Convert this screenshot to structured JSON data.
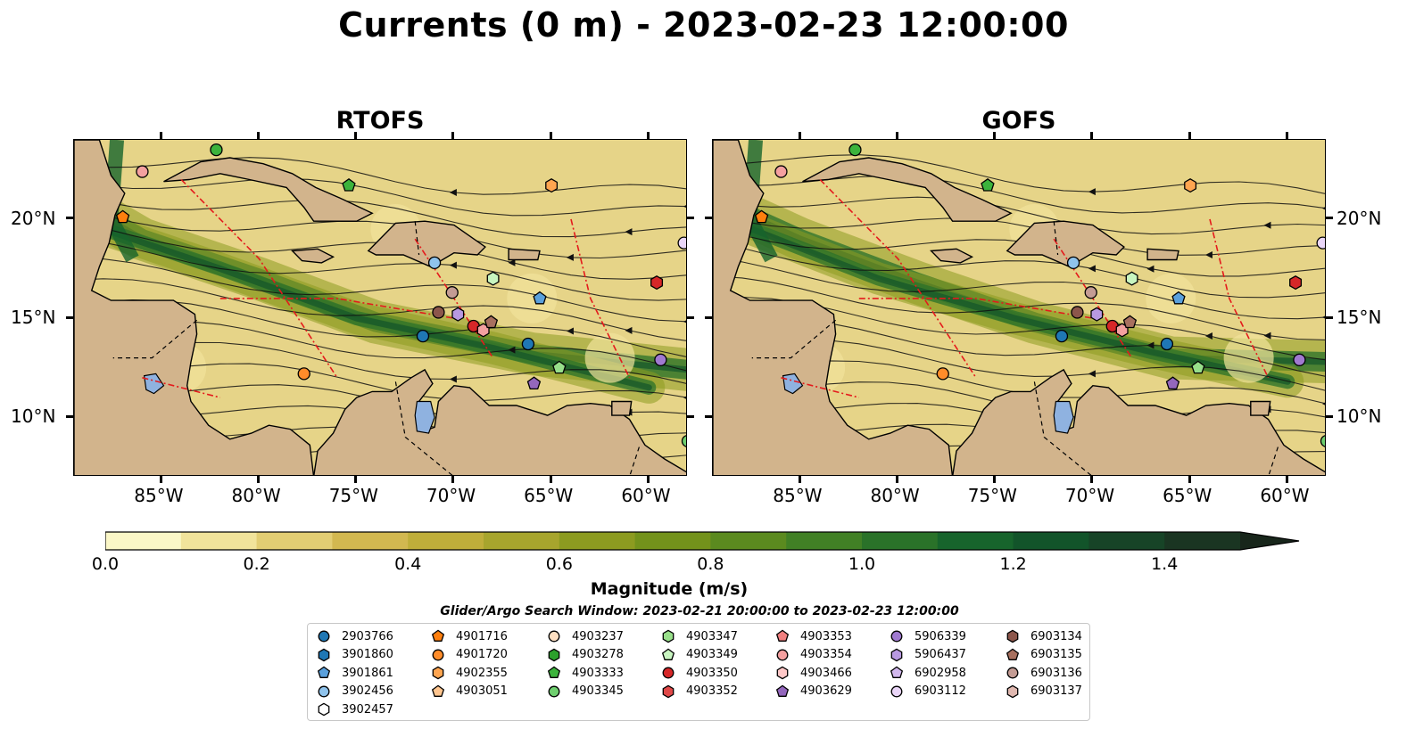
{
  "title": "Currents (0 m) - 2023-02-23 12:00:00",
  "panels": [
    {
      "title": "RTOFS"
    },
    {
      "title": "GOFS"
    }
  ],
  "lon_ticks": [
    "85°W",
    "80°W",
    "75°W",
    "70°W",
    "65°W",
    "60°W"
  ],
  "lon_values": [
    -85,
    -80,
    -75,
    -70,
    -65,
    -60
  ],
  "lat_ticks": [
    "20°N",
    "15°N",
    "10°N"
  ],
  "lat_values": [
    20,
    15,
    10
  ],
  "extent": {
    "lon": [
      -89.5,
      -58
    ],
    "lat": [
      7,
      24
    ]
  },
  "colorbar": {
    "label": "Magnitude (m/s)",
    "ticks": [
      "0.0",
      "0.2",
      "0.4",
      "0.6",
      "0.8",
      "1.0",
      "1.2",
      "1.4"
    ],
    "range": [
      0,
      1.5
    ],
    "extend": "max",
    "colors": [
      "#fbf7c7",
      "#f1e39b",
      "#e2cd73",
      "#d2b850",
      "#bfae3a",
      "#a7a52d",
      "#8c9b20",
      "#73921b",
      "#5b8a1f",
      "#418025",
      "#2a7229",
      "#17642c",
      "#12542a",
      "#174427",
      "#1a3522",
      "#18261b"
    ]
  },
  "search_window": "Glider/Argo Search Window: 2023-02-21 20:00:00 to 2023-02-23 12:00:00",
  "legend": [
    {
      "id": "2903766",
      "shape": "circle",
      "color": "#1f77b4"
    },
    {
      "id": "3901860",
      "shape": "hexagon",
      "color": "#1f77b4"
    },
    {
      "id": "3901861",
      "shape": "pentagon",
      "color": "#5aa0dc"
    },
    {
      "id": "3902456",
      "shape": "circle",
      "color": "#8fc3ec"
    },
    {
      "id": "3902457",
      "shape": "hexagon",
      "color": "#ffffff"
    },
    {
      "id": "4901716",
      "shape": "pentagon",
      "color": "#ff7f0e"
    },
    {
      "id": "4901720",
      "shape": "circle",
      "color": "#ff8c2a"
    },
    {
      "id": "4902355",
      "shape": "hexagon",
      "color": "#ffa550"
    },
    {
      "id": "4903051",
      "shape": "pentagon",
      "color": "#ffc58f"
    },
    {
      "id": "4903237",
      "shape": "circle",
      "color": "#ffe0c2"
    },
    {
      "id": "4903278",
      "shape": "hexagon",
      "color": "#2ca02c"
    },
    {
      "id": "4903333",
      "shape": "pentagon",
      "color": "#3cb33c"
    },
    {
      "id": "4903345",
      "shape": "circle",
      "color": "#6fcf6f"
    },
    {
      "id": "4903347",
      "shape": "hexagon",
      "color": "#98df8a"
    },
    {
      "id": "4903349",
      "shape": "pentagon",
      "color": "#c8f5c0"
    },
    {
      "id": "4903350",
      "shape": "circle",
      "color": "#d62728"
    },
    {
      "id": "4903352",
      "shape": "hexagon",
      "color": "#e04848"
    },
    {
      "id": "4903353",
      "shape": "pentagon",
      "color": "#f08080"
    },
    {
      "id": "4903354",
      "shape": "circle",
      "color": "#f4a0a0"
    },
    {
      "id": "4903466",
      "shape": "hexagon",
      "color": "#ffc8c8"
    },
    {
      "id": "4903629",
      "shape": "pentagon",
      "color": "#9467bd"
    },
    {
      "id": "5906339",
      "shape": "circle",
      "color": "#a07ad0"
    },
    {
      "id": "5906437",
      "shape": "hexagon",
      "color": "#b899e0"
    },
    {
      "id": "6902958",
      "shape": "pentagon",
      "color": "#d2b8ee"
    },
    {
      "id": "6903112",
      "shape": "circle",
      "color": "#ead6f8"
    },
    {
      "id": "6903134",
      "shape": "hexagon",
      "color": "#8c564b"
    },
    {
      "id": "6903135",
      "shape": "pentagon",
      "color": "#a8705f"
    },
    {
      "id": "6903136",
      "shape": "circle",
      "color": "#c49c94"
    },
    {
      "id": "6903137",
      "shape": "hexagon",
      "color": "#e0b8b0"
    }
  ],
  "markers": [
    {
      "lon": -86.0,
      "lat": 22.4,
      "color": "#f4a0a0",
      "shape": "circle"
    },
    {
      "lon": -82.2,
      "lat": 23.5,
      "color": "#3cb33c",
      "shape": "circle"
    },
    {
      "lon": -87.0,
      "lat": 20.1,
      "color": "#ff7f0e",
      "shape": "pentagon"
    },
    {
      "lon": -75.4,
      "lat": 21.7,
      "color": "#3cb33c",
      "shape": "pentagon"
    },
    {
      "lon": -65.0,
      "lat": 21.7,
      "color": "#ffa550",
      "shape": "hexagon"
    },
    {
      "lon": -58.2,
      "lat": 18.8,
      "color": "#ead6f8",
      "shape": "circle"
    },
    {
      "lon": -59.6,
      "lat": 16.8,
      "color": "#d62728",
      "shape": "hexagon"
    },
    {
      "lon": -71.0,
      "lat": 17.8,
      "color": "#8fc3ec",
      "shape": "circle"
    },
    {
      "lon": -68.0,
      "lat": 17.0,
      "color": "#c8f5c0",
      "shape": "hexagon"
    },
    {
      "lon": -65.6,
      "lat": 16.0,
      "color": "#5aa0dc",
      "shape": "pentagon"
    },
    {
      "lon": -70.1,
      "lat": 16.3,
      "color": "#c49c94",
      "shape": "circle"
    },
    {
      "lon": -70.8,
      "lat": 15.3,
      "color": "#8c564b",
      "shape": "circle"
    },
    {
      "lon": -69.8,
      "lat": 15.2,
      "color": "#b899e0",
      "shape": "hexagon"
    },
    {
      "lon": -69.0,
      "lat": 14.6,
      "color": "#d62728",
      "shape": "circle"
    },
    {
      "lon": -68.5,
      "lat": 14.4,
      "color": "#f4a0a0",
      "shape": "hexagon"
    },
    {
      "lon": -68.1,
      "lat": 14.8,
      "color": "#a8705f",
      "shape": "pentagon"
    },
    {
      "lon": -71.6,
      "lat": 14.1,
      "color": "#1f77b4",
      "shape": "circle"
    },
    {
      "lon": -66.2,
      "lat": 13.7,
      "color": "#1f77b4",
      "shape": "circle"
    },
    {
      "lon": -59.4,
      "lat": 12.9,
      "color": "#a07ad0",
      "shape": "circle"
    },
    {
      "lon": -64.6,
      "lat": 12.5,
      "color": "#98df8a",
      "shape": "pentagon"
    },
    {
      "lon": -77.7,
      "lat": 12.2,
      "color": "#ff8c2a",
      "shape": "circle"
    },
    {
      "lon": -65.9,
      "lat": 11.7,
      "color": "#9467bd",
      "shape": "pentagon"
    },
    {
      "lon": -58.0,
      "lat": 8.8,
      "color": "#6fcf6f",
      "shape": "circle"
    }
  ],
  "labels": {
    "x_axis_top_unlabeled": true
  }
}
